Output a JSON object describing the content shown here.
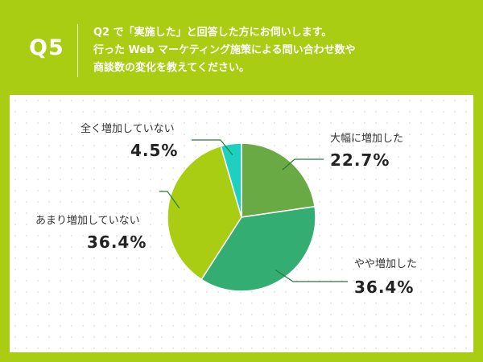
{
  "header": {
    "question_number": "Q5",
    "question_lines": [
      "Q2 で「実施した」と回答した方にお伺いします。",
      "行った Web マーケティング施策による問い合わせ数や",
      "商談数の変化を教えてください。"
    ]
  },
  "colors": {
    "background": "#a8cd12",
    "panel": "#ffffff",
    "leader_line": "#2a7a3a"
  },
  "chart_data": {
    "type": "pie",
    "title": "",
    "slices": [
      {
        "label": "大幅に増加した",
        "value": 22.7,
        "value_label": "22.7%",
        "color": "#6aaa45"
      },
      {
        "label": "やや増加した",
        "value": 36.4,
        "value_label": "36.4%",
        "color": "#34ad73"
      },
      {
        "label": "あまり増加していない",
        "value": 36.4,
        "value_label": "36.4%",
        "color": "#a8cd12"
      },
      {
        "label": "全く増加していない",
        "value": 4.5,
        "value_label": "4.5%",
        "color": "#1ed0bf"
      }
    ]
  }
}
